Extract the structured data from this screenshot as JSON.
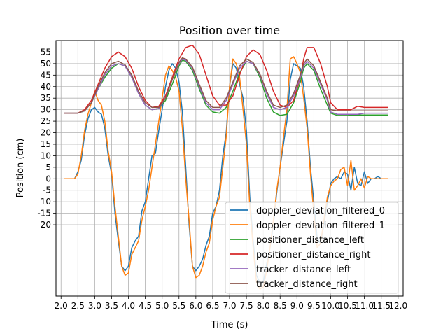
{
  "chart_data": {
    "type": "line",
    "title": "Position over time",
    "xlabel": "Time (s)",
    "ylabel": "Position (cm)",
    "xlim": [
      1.85,
      12.15
    ],
    "ylim": [
      -51,
      60
    ],
    "x_ticks": [
      "2.0",
      "2.5",
      "3.0",
      "3.5",
      "4.0",
      "4.5",
      "5.0",
      "5.5",
      "6.0",
      "6.5",
      "7.0",
      "7.5",
      "8.0",
      "8.5",
      "9.0",
      "9.5",
      "10.0",
      "10.5",
      "11.0",
      "11.5",
      "12.0"
    ],
    "y_ticks": [
      "-20",
      "-15",
      "-10",
      "-5",
      "0",
      "5",
      "10",
      "15",
      "20",
      "25",
      "30",
      "35",
      "40",
      "45",
      "50",
      "55"
    ],
    "grid": true,
    "legend_position": "lower-right",
    "series": [
      {
        "name": "doppler_deviation_filtered_0",
        "color": "#1f77b4",
        "x": [
          2.1,
          2.4,
          2.5,
          2.6,
          2.7,
          2.8,
          2.9,
          3.0,
          3.1,
          3.2,
          3.3,
          3.4,
          3.5,
          3.6,
          3.7,
          3.8,
          3.9,
          4.0,
          4.1,
          4.2,
          4.3,
          4.4,
          4.5,
          4.6,
          4.7,
          4.8,
          4.9,
          5.0,
          5.1,
          5.2,
          5.3,
          5.4,
          5.5,
          5.6,
          5.7,
          5.8,
          5.9,
          6.0,
          6.1,
          6.2,
          6.3,
          6.4,
          6.5,
          6.6,
          6.7,
          6.8,
          6.9,
          7.0,
          7.1,
          7.2,
          7.3,
          7.4,
          7.5,
          7.6,
          7.7,
          7.8,
          7.9,
          8.0,
          8.1,
          8.2,
          8.3,
          8.4,
          8.5,
          8.6,
          8.7,
          8.8,
          8.9,
          9.0,
          9.1,
          9.2,
          9.3,
          9.4,
          9.5,
          9.6,
          9.7,
          9.8,
          9.9,
          10.0,
          10.1,
          10.2,
          10.3,
          10.4,
          10.5,
          10.6,
          10.7,
          10.8,
          10.9,
          11.0,
          11.1,
          11.2,
          11.3,
          11.4,
          11.5,
          11.7
        ],
        "y": [
          0,
          0,
          3,
          8,
          19,
          26,
          30,
          31,
          29,
          28,
          22,
          10,
          2,
          -15,
          -27,
          -38,
          -40,
          -38,
          -30,
          -27,
          -25,
          -14,
          -10,
          0,
          10,
          11,
          21,
          30,
          40,
          47,
          50,
          48,
          42,
          29,
          5,
          -20,
          -38,
          -40,
          -38,
          -35,
          -29,
          -25,
          -15,
          -12,
          -5,
          10,
          20,
          40,
          50,
          48,
          41,
          35,
          21,
          -8,
          -27,
          -42,
          -45,
          -45,
          -37,
          -30,
          -20,
          -6,
          5,
          15,
          25,
          43,
          50,
          49,
          48,
          40,
          25,
          5,
          -10,
          -26,
          -28,
          -20,
          -10,
          -2,
          0,
          1,
          0,
          3,
          2,
          -5,
          5,
          -2,
          -3,
          3,
          -2,
          0,
          0,
          1,
          0,
          0
        ],
        "width": 1.5
      },
      {
        "name": "doppler_deviation_filtered_1",
        "color": "#ff7f0e",
        "x": [
          2.1,
          2.4,
          2.5,
          2.6,
          2.7,
          2.8,
          2.9,
          3.0,
          3.1,
          3.2,
          3.3,
          3.4,
          3.5,
          3.6,
          3.7,
          3.8,
          3.9,
          4.0,
          4.1,
          4.2,
          4.3,
          4.4,
          4.5,
          4.6,
          4.7,
          4.8,
          4.9,
          5.0,
          5.1,
          5.2,
          5.3,
          5.4,
          5.5,
          5.6,
          5.7,
          5.8,
          5.9,
          6.0,
          6.1,
          6.2,
          6.3,
          6.4,
          6.5,
          6.6,
          6.7,
          6.8,
          6.9,
          7.0,
          7.1,
          7.2,
          7.3,
          7.4,
          7.5,
          7.6,
          7.7,
          7.8,
          7.9,
          8.0,
          8.1,
          8.2,
          8.3,
          8.4,
          8.5,
          8.6,
          8.7,
          8.8,
          8.9,
          9.0,
          9.1,
          9.2,
          9.3,
          9.4,
          9.5,
          9.6,
          9.7,
          9.8,
          9.9,
          10.0,
          10.1,
          10.2,
          10.3,
          10.4,
          10.5,
          10.6,
          10.7,
          10.8,
          10.9,
          11.0,
          11.1,
          11.2,
          11.3,
          11.4,
          11.5,
          11.7
        ],
        "y": [
          0,
          0,
          2,
          10,
          21,
          28,
          33,
          38,
          34,
          32,
          25,
          12,
          3,
          -12,
          -25,
          -38,
          -42,
          -41,
          -33,
          -30,
          -27,
          -18,
          -12,
          -5,
          5,
          15,
          25,
          35,
          45,
          49,
          47,
          44,
          38,
          22,
          0,
          -18,
          -38,
          -43,
          -42,
          -38,
          -32,
          -28,
          -18,
          -12,
          -8,
          5,
          18,
          40,
          52,
          50,
          44,
          30,
          15,
          -12,
          -30,
          -45,
          -48,
          -47,
          -40,
          -30,
          -18,
          -5,
          5,
          18,
          30,
          52,
          53,
          50,
          46,
          35,
          22,
          2,
          -15,
          -30,
          -28,
          -18,
          -8,
          -3,
          -1,
          0,
          4,
          5,
          -3,
          8,
          -5,
          -3,
          0,
          -4,
          1,
          0,
          0,
          0,
          0,
          0
        ],
        "width": 1.5
      },
      {
        "name": "positioner_distance_left",
        "color": "#2ca02c",
        "x": [
          2.1,
          2.5,
          2.7,
          2.9,
          3.1,
          3.3,
          3.5,
          3.7,
          3.9,
          4.1,
          4.3,
          4.5,
          4.7,
          4.9,
          5.1,
          5.3,
          5.5,
          5.6,
          5.7,
          5.9,
          6.1,
          6.3,
          6.5,
          6.7,
          6.9,
          7.1,
          7.3,
          7.5,
          7.7,
          7.9,
          8.1,
          8.3,
          8.5,
          8.7,
          8.9,
          9.1,
          9.2,
          9.3,
          9.5,
          9.7,
          9.9,
          10.0,
          10.2,
          10.5,
          10.8,
          11.0,
          11.3,
          11.7
        ],
        "y": [
          28.5,
          28.5,
          29.5,
          33,
          39,
          44,
          48,
          50,
          49,
          44,
          37,
          32,
          30,
          30.5,
          34,
          41,
          49,
          51.5,
          51,
          47,
          39,
          32,
          29,
          28.5,
          31,
          38,
          46,
          51,
          50,
          44,
          35,
          29,
          27.5,
          28,
          33,
          42,
          48,
          50,
          47,
          39,
          32,
          28.5,
          27.5,
          27.5,
          27.7,
          27.7,
          27.7,
          27.7
        ],
        "width": 1.5
      },
      {
        "name": "positioner_distance_right",
        "color": "#d62728",
        "x": [
          2.1,
          2.5,
          2.7,
          2.9,
          3.1,
          3.3,
          3.5,
          3.7,
          3.9,
          4.1,
          4.3,
          4.5,
          4.7,
          4.9,
          5.1,
          5.3,
          5.5,
          5.7,
          5.9,
          6.1,
          6.3,
          6.5,
          6.7,
          6.9,
          7.1,
          7.3,
          7.5,
          7.7,
          7.9,
          8.1,
          8.3,
          8.5,
          8.7,
          8.9,
          9.1,
          9.2,
          9.3,
          9.5,
          9.7,
          9.9,
          10.0,
          10.2,
          10.5,
          10.6,
          10.8,
          11.0,
          11.3,
          11.7
        ],
        "y": [
          28.5,
          28.5,
          30,
          34,
          41,
          48,
          53,
          55,
          53,
          48,
          40,
          34,
          31,
          31.5,
          36,
          44,
          52,
          57,
          58,
          54,
          45,
          36,
          32,
          32,
          36,
          45,
          53,
          56,
          54,
          47,
          38,
          32,
          31,
          34,
          44,
          52,
          57,
          57,
          50,
          40,
          33,
          30,
          30,
          30,
          31.5,
          31,
          31,
          31
        ],
        "width": 1.5
      },
      {
        "name": "tracker_distance_left",
        "color": "#9467bd",
        "x": [
          2.1,
          2.5,
          2.7,
          2.9,
          3.1,
          3.3,
          3.5,
          3.7,
          3.9,
          4.1,
          4.3,
          4.5,
          4.7,
          4.9,
          5.1,
          5.3,
          5.5,
          5.6,
          5.7,
          5.9,
          6.1,
          6.3,
          6.5,
          6.7,
          6.9,
          7.1,
          7.3,
          7.5,
          7.7,
          7.9,
          8.1,
          8.3,
          8.5,
          8.7,
          8.9,
          9.1,
          9.2,
          9.3,
          9.5,
          9.7,
          9.9,
          10.0,
          10.2,
          10.5,
          10.8,
          11.0,
          11.3,
          11.7
        ],
        "y": [
          28.5,
          28.5,
          29.5,
          33,
          39,
          45,
          49,
          50,
          49,
          44,
          37,
          32,
          30,
          30.5,
          35,
          43,
          50,
          52,
          51.5,
          48,
          40,
          33,
          30,
          30,
          34,
          41,
          48,
          51,
          50,
          45,
          37,
          31,
          30,
          31,
          36,
          44,
          49,
          51,
          48,
          41,
          34,
          29,
          28,
          28,
          28,
          28.5,
          28.5,
          28.5
        ],
        "width": 1.5
      },
      {
        "name": "tracker_distance_right",
        "color": "#8c564b",
        "x": [
          2.1,
          2.5,
          2.7,
          2.9,
          3.1,
          3.3,
          3.5,
          3.7,
          3.9,
          4.1,
          4.3,
          4.5,
          4.7,
          4.9,
          5.1,
          5.3,
          5.5,
          5.6,
          5.7,
          5.9,
          6.1,
          6.3,
          6.5,
          6.7,
          6.9,
          7.1,
          7.3,
          7.5,
          7.7,
          7.9,
          8.1,
          8.3,
          8.5,
          8.7,
          8.9,
          9.1,
          9.2,
          9.3,
          9.5,
          9.7,
          9.9,
          10.0,
          10.2,
          10.5,
          10.8,
          11.0,
          11.3,
          11.7
        ],
        "y": [
          28.5,
          28.5,
          29.5,
          33,
          40,
          46,
          50,
          51,
          49.5,
          45,
          38,
          33,
          31,
          31,
          35,
          43,
          50.5,
          52.5,
          52,
          48.5,
          41,
          34,
          31,
          31,
          35,
          42,
          49,
          52,
          50.5,
          45.5,
          38,
          32,
          31,
          32,
          37,
          45,
          50,
          52,
          49,
          42,
          35,
          30,
          29.5,
          29.5,
          29.5,
          29.5,
          29.5,
          29.5
        ],
        "width": 1.5
      }
    ]
  }
}
